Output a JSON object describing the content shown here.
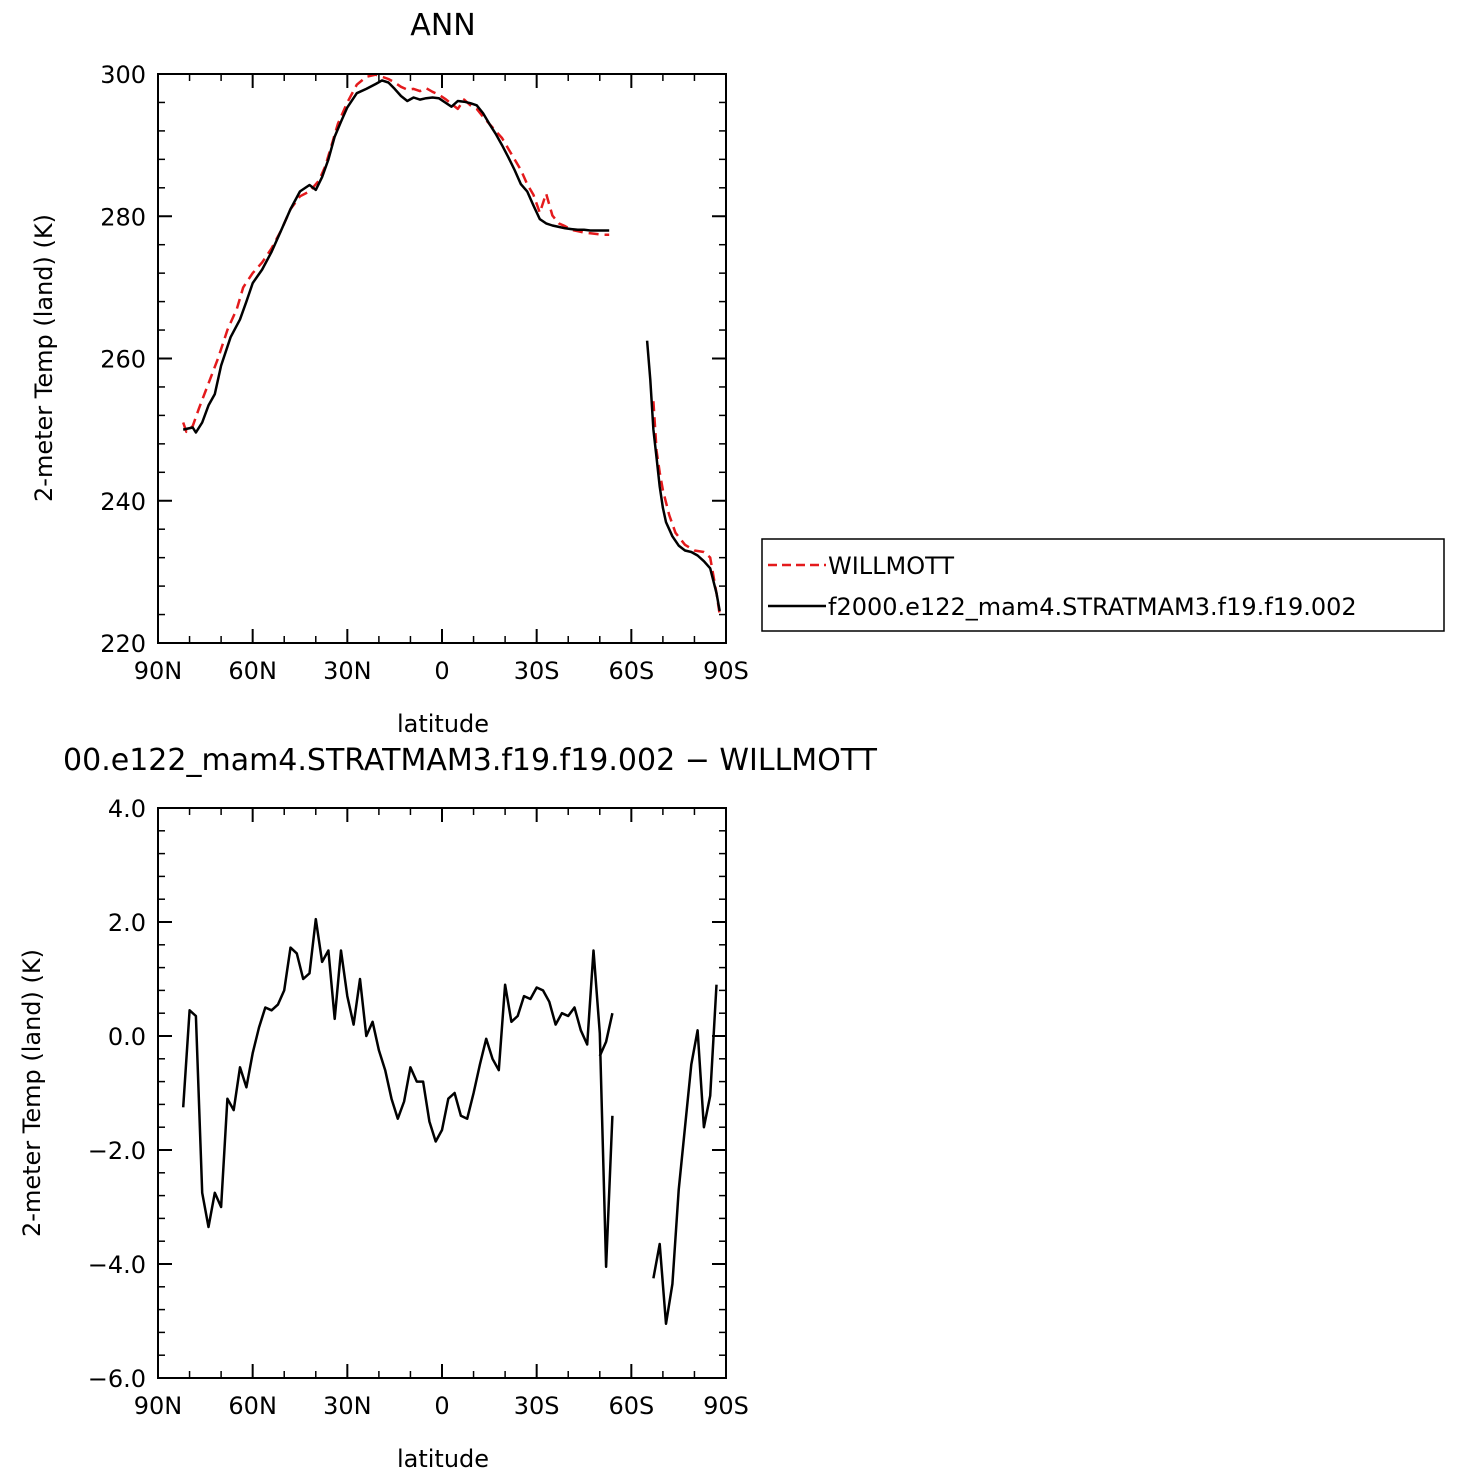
{
  "colors": {
    "model": "#000000",
    "obs": "#e41a1c"
  },
  "chart_data": [
    {
      "type": "line",
      "title": "ANN",
      "xlabel": "latitude",
      "ylabel": "2-meter Temp (land) (K)",
      "xlim": [
        -90,
        90
      ],
      "ylim": [
        220,
        300
      ],
      "xticks": [
        -90,
        -60,
        -30,
        0,
        30,
        60,
        90
      ],
      "xtick_labels": [
        "90N",
        "60N",
        "30N",
        "0",
        "30S",
        "60S",
        "90S"
      ],
      "yticks": [
        220,
        240,
        260,
        280,
        300
      ],
      "ytick_labels": [
        "220",
        "240",
        "260",
        "280",
        "300"
      ],
      "legend": {
        "placement": "right",
        "entries": [
          "WILLMOTT",
          "f2000.e122_mam4.STRATMAM3.f19.f19.002"
        ]
      },
      "series": [
        {
          "name": "WILLMOTT",
          "style": "dashed",
          "color_key": "obs",
          "segments": [
            {
              "x": [
                -82,
                -81,
                -79,
                -77,
                -74,
                -71,
                -68,
                -65,
                -63,
                -60,
                -57,
                -54,
                -51,
                -48,
                -45,
                -42,
                -39,
                -37,
                -35,
                -33,
                -30,
                -27,
                -24,
                -21,
                -19,
                -17,
                -15,
                -13,
                -11,
                -9,
                -7,
                -5,
                -3,
                -1,
                1,
                3,
                5,
                7,
                9,
                11,
                13,
                15,
                17,
                19,
                21,
                23,
                25,
                27,
                29,
                31,
                33,
                35,
                37,
                39,
                41,
                43,
                45,
                47,
                49,
                51,
                53
              ],
              "y": [
                251,
                249.7,
                250.5,
                253,
                256.5,
                260,
                264,
                267,
                270,
                272,
                273.5,
                275.5,
                278,
                281,
                282.8,
                283.5,
                285,
                287,
                290,
                293,
                296,
                298.5,
                299.6,
                299.9,
                299.6,
                299.3,
                298.8,
                298.2,
                297.8,
                297.9,
                297.6,
                298,
                297.5,
                297.1,
                296.5,
                295.8,
                295.1,
                296.4,
                295.6,
                295.1,
                294,
                293,
                292,
                291,
                289.5,
                288,
                286.5,
                284.5,
                283,
                280.5,
                283.2,
                280.1,
                279,
                278.6,
                278.1,
                277.9,
                277.7,
                277.6,
                277.5,
                277.4,
                277.4
              ]
            },
            {
              "x": [
                67,
                68,
                69,
                70,
                72,
                74,
                77,
                80,
                83,
                85,
                87,
                88
              ],
              "y": [
                254,
                247,
                244,
                241.5,
                238,
                235.5,
                233.8,
                233,
                232.8,
                232,
                227,
                224
              ]
            }
          ]
        },
        {
          "name": "f2000.e122_mam4.STRATMAM3.f19.f19.002",
          "style": "solid",
          "color_key": "model",
          "segments": [
            {
              "x": [
                -82,
                -81,
                -79,
                -78,
                -76,
                -74,
                -72,
                -70,
                -67,
                -64,
                -62,
                -60,
                -57,
                -54,
                -51,
                -48,
                -45,
                -42,
                -40,
                -38,
                -36,
                -34,
                -32,
                -30,
                -27,
                -24,
                -21,
                -19,
                -17,
                -15,
                -13,
                -11,
                -9,
                -7,
                -5,
                -3,
                -1,
                1,
                3,
                5,
                7,
                9,
                11,
                13,
                15,
                17,
                19,
                21,
                23,
                25,
                27,
                29,
                31,
                33,
                35,
                37,
                39,
                41,
                43,
                45,
                47,
                49,
                51,
                53
              ],
              "y": [
                250,
                250.1,
                250.3,
                249.6,
                251,
                253.4,
                255,
                259,
                263,
                265.5,
                268,
                270.6,
                272.5,
                275,
                278,
                281,
                283.5,
                284.4,
                283.7,
                285.5,
                288,
                291.2,
                293.3,
                295.3,
                297.3,
                297.9,
                298.6,
                299.1,
                298.8,
                297.9,
                296.9,
                296.2,
                296.7,
                296.4,
                296.6,
                296.7,
                296.6,
                296,
                295.4,
                296.2,
                296.1,
                295.9,
                295.6,
                294.5,
                293,
                291.6,
                290,
                288.3,
                286.5,
                284.5,
                283.5,
                281.5,
                279.6,
                279,
                278.7,
                278.5,
                278.3,
                278.2,
                278.1,
                278.1,
                278,
                278,
                278,
                278
              ]
            },
            {
              "x": [
                65,
                66,
                67,
                68,
                69,
                70,
                71,
                73,
                75,
                77,
                79,
                81,
                83,
                85,
                87,
                88
              ],
              "y": [
                262.5,
                257,
                250,
                246,
                242,
                239,
                237,
                235,
                233.7,
                233,
                232.8,
                232.3,
                231.5,
                230.5,
                227,
                224.5
              ]
            }
          ]
        }
      ]
    },
    {
      "type": "line",
      "title": "00.e122_mam4.STRATMAM3.f19.f19.002 − WILLMOTT",
      "xlabel": "latitude",
      "ylabel": "2-meter Temp (land) (K)",
      "xlim": [
        -90,
        90
      ],
      "ylim": [
        -6,
        4
      ],
      "xticks": [
        -90,
        -60,
        -30,
        0,
        30,
        60,
        90
      ],
      "xtick_labels": [
        "90N",
        "60N",
        "30N",
        "0",
        "30S",
        "60S",
        "90S"
      ],
      "yticks": [
        -6,
        -4,
        -2,
        0,
        2,
        4
      ],
      "ytick_labels": [
        "−6.0",
        "−4.0",
        "−2.0",
        "0.0",
        "2.0",
        "4.0"
      ],
      "series": [
        {
          "style": "solid",
          "color_key": "model",
          "segments": [
            {
              "x": [
                -82,
                -80,
                -78,
                -76,
                -74,
                -72,
                -70,
                -68,
                -66,
                -64,
                -62,
                -60,
                -58,
                -56,
                -54,
                -52,
                -50,
                -48,
                -46,
                -44,
                -42,
                -40,
                -38,
                -36,
                -34,
                -32,
                -30,
                -28,
                -26,
                -24,
                -22,
                -20,
                -18,
                -16,
                -14,
                -12,
                -10,
                -8,
                -6,
                -4,
                -2,
                0,
                2,
                4,
                6,
                8,
                10,
                12,
                14,
                16,
                18,
                20,
                22,
                24,
                26,
                28,
                30,
                32,
                34,
                36,
                38,
                40,
                42,
                44,
                46,
                48,
                50,
                52,
                54
              ],
              "y": [
                -1.25,
                0.45,
                0.35,
                -2.75,
                -3.35,
                -2.75,
                -3.0,
                -1.1,
                -1.3,
                -0.55,
                -0.9,
                -0.3,
                0.15,
                0.5,
                0.45,
                0.55,
                0.8,
                1.55,
                1.45,
                1.0,
                1.1,
                2.05,
                1.3,
                1.5,
                0.3,
                1.5,
                0.7,
                0.2,
                1.0,
                0.0,
                0.25,
                -0.25,
                -0.6,
                -1.1,
                -1.45,
                -1.15,
                -0.55,
                -0.8,
                -0.8,
                -1.5,
                -1.85,
                -1.65,
                -1.1,
                -1.0,
                -1.4,
                -1.45,
                -1.0,
                -0.5,
                -0.05,
                -0.4,
                -0.6,
                0.9,
                0.25,
                0.35,
                0.7,
                0.65,
                0.85,
                0.8,
                0.6,
                0.2,
                0.4,
                0.35,
                0.5,
                0.1,
                -0.15,
                1.5,
                0.05,
                -4.05,
                -1.4
              ]
            },
            {
              "x": [
                50,
                52,
                54
              ],
              "y": [
                -0.35,
                -0.1,
                0.4
              ]
            },
            {
              "x": [
                67,
                69,
                71,
                73,
                75,
                77,
                79,
                81,
                83,
                85,
                87
              ],
              "y": [
                -4.25,
                -3.65,
                -5.05,
                -4.35,
                -2.7,
                -1.6,
                -0.5,
                0.1,
                -1.6,
                -1.05,
                0.9
              ]
            }
          ]
        }
      ]
    }
  ]
}
